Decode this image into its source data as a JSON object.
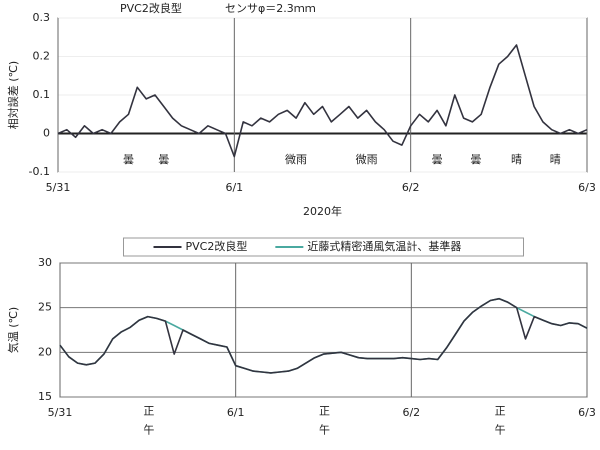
{
  "chart_data": [
    {
      "type": "line",
      "title": "PVC2改良型",
      "subtitle": "センサφ＝2.3ｍｍ",
      "y_label": "相対誤差 (℃)",
      "x_label": "2020年",
      "annotations": [
        "曇",
        "曇",
        "微雨",
        "微雨",
        "曇",
        "曇",
        "晴",
        "晴"
      ],
      "x": [
        0,
        0.05,
        0.1,
        0.15,
        0.2,
        0.25,
        0.3,
        0.35,
        0.4,
        0.45,
        0.5,
        0.55,
        0.6,
        0.65,
        0.7,
        0.75,
        0.8,
        0.85,
        0.9,
        0.95,
        1,
        1.05,
        1.1,
        1.15,
        1.2,
        1.25,
        1.3,
        1.35,
        1.4,
        1.45,
        1.5,
        1.55,
        1.6,
        1.65,
        1.7,
        1.75,
        1.8,
        1.85,
        1.9,
        1.95,
        2,
        2.05,
        2.1,
        2.15,
        2.2,
        2.25,
        2.3,
        2.35,
        2.4,
        2.45,
        2.5,
        2.55,
        2.6,
        2.65,
        2.7,
        2.75,
        2.8,
        2.85,
        2.9,
        2.95,
        3
      ],
      "series": [
        {
          "name": "PVC2改良型",
          "color": "#33333f",
          "values": [
            0,
            0.01,
            -0.01,
            0.02,
            0,
            0.01,
            0,
            0.03,
            0.05,
            0.12,
            0.09,
            0.1,
            0.07,
            0.04,
            0.02,
            0.01,
            0,
            0.02,
            0.01,
            0,
            -0.06,
            0.03,
            0.02,
            0.04,
            0.03,
            0.05,
            0.06,
            0.04,
            0.08,
            0.05,
            0.07,
            0.03,
            0.05,
            0.07,
            0.04,
            0.06,
            0.03,
            0.01,
            -0.02,
            -0.03,
            0.02,
            0.05,
            0.03,
            0.06,
            0.02,
            0.1,
            0.04,
            0.03,
            0.05,
            0.12,
            0.18,
            0.2,
            0.23,
            0.15,
            0.07,
            0.03,
            0.01,
            0,
            0.01,
            0,
            0.01
          ]
        }
      ],
      "xlim": [
        0,
        3
      ],
      "xticks": [
        {
          "value": 0,
          "label": "5/31"
        },
        {
          "value": 1,
          "label": "6/1"
        },
        {
          "value": 2,
          "label": "6/2"
        },
        {
          "value": 3,
          "label": "6/3"
        }
      ],
      "ylim": [
        -0.1,
        0.3
      ],
      "yticks": [
        -0.1,
        0,
        0.1,
        0.2,
        0.3
      ],
      "grid": true
    },
    {
      "type": "line",
      "y_label": "気温 (℃)",
      "legend": "upper center",
      "x": [
        0,
        0.05,
        0.1,
        0.15,
        0.2,
        0.25,
        0.3,
        0.35,
        0.4,
        0.45,
        0.5,
        0.55,
        0.6,
        0.65,
        0.7,
        0.75,
        0.8,
        0.85,
        0.9,
        0.95,
        1,
        1.05,
        1.1,
        1.15,
        1.2,
        1.25,
        1.3,
        1.35,
        1.4,
        1.45,
        1.5,
        1.55,
        1.6,
        1.65,
        1.7,
        1.75,
        1.8,
        1.85,
        1.9,
        1.95,
        2,
        2.05,
        2.1,
        2.15,
        2.2,
        2.25,
        2.3,
        2.35,
        2.4,
        2.45,
        2.5,
        2.55,
        2.6,
        2.65,
        2.7,
        2.75,
        2.8,
        2.85,
        2.9,
        2.95,
        3
      ],
      "series": [
        {
          "name": "近藤式精密通風気温計、基準器",
          "color": "#4aa9a0",
          "values": [
            20.8,
            19.5,
            18.8,
            18.6,
            18.8,
            19.8,
            21.5,
            22.3,
            22.8,
            23.6,
            24,
            23.8,
            23.5,
            23,
            22.5,
            22,
            21.5,
            21,
            20.8,
            20.6,
            18.5,
            18.2,
            17.9,
            17.8,
            17.7,
            17.8,
            17.9,
            18.2,
            18.8,
            19.4,
            19.8,
            19.9,
            20,
            19.7,
            19.4,
            19.3,
            19.3,
            19.3,
            19.3,
            19.4,
            19.3,
            19.2,
            19.3,
            19.2,
            20.5,
            22,
            23.5,
            24.5,
            25.2,
            25.8,
            26,
            25.6,
            25,
            24.5,
            24,
            23.6,
            23.2,
            23,
            23.3,
            23.2,
            22.7
          ]
        },
        {
          "name": "PVC2改良型",
          "color": "#33333f",
          "values": [
            20.8,
            19.5,
            18.8,
            18.6,
            18.8,
            19.8,
            21.5,
            22.3,
            22.8,
            23.6,
            24,
            23.8,
            23.5,
            19.8,
            22.5,
            22,
            21.5,
            21,
            20.8,
            20.6,
            18.5,
            18.2,
            17.9,
            17.8,
            17.7,
            17.8,
            17.9,
            18.2,
            18.8,
            19.4,
            19.8,
            19.9,
            20,
            19.7,
            19.4,
            19.3,
            19.3,
            19.3,
            19.3,
            19.4,
            19.3,
            19.2,
            19.3,
            19.2,
            20.5,
            22,
            23.5,
            24.5,
            25.2,
            25.8,
            26,
            25.6,
            25,
            21.5,
            24,
            23.6,
            23.2,
            23,
            23.3,
            23.2,
            22.7
          ]
        }
      ],
      "xlim": [
        0,
        3
      ],
      "xticks": [
        {
          "value": 0,
          "label": "5/31"
        },
        {
          "value": 0.5,
          "label": "正午"
        },
        {
          "value": 1,
          "label": "6/1"
        },
        {
          "value": 1.5,
          "label": "正午"
        },
        {
          "value": 2,
          "label": "6/2"
        },
        {
          "value": 2.5,
          "label": "正午"
        },
        {
          "value": 3,
          "label": "6/3"
        }
      ],
      "ylim": [
        15,
        30
      ],
      "yticks": [
        15,
        20,
        25,
        30
      ],
      "grid": true
    }
  ]
}
